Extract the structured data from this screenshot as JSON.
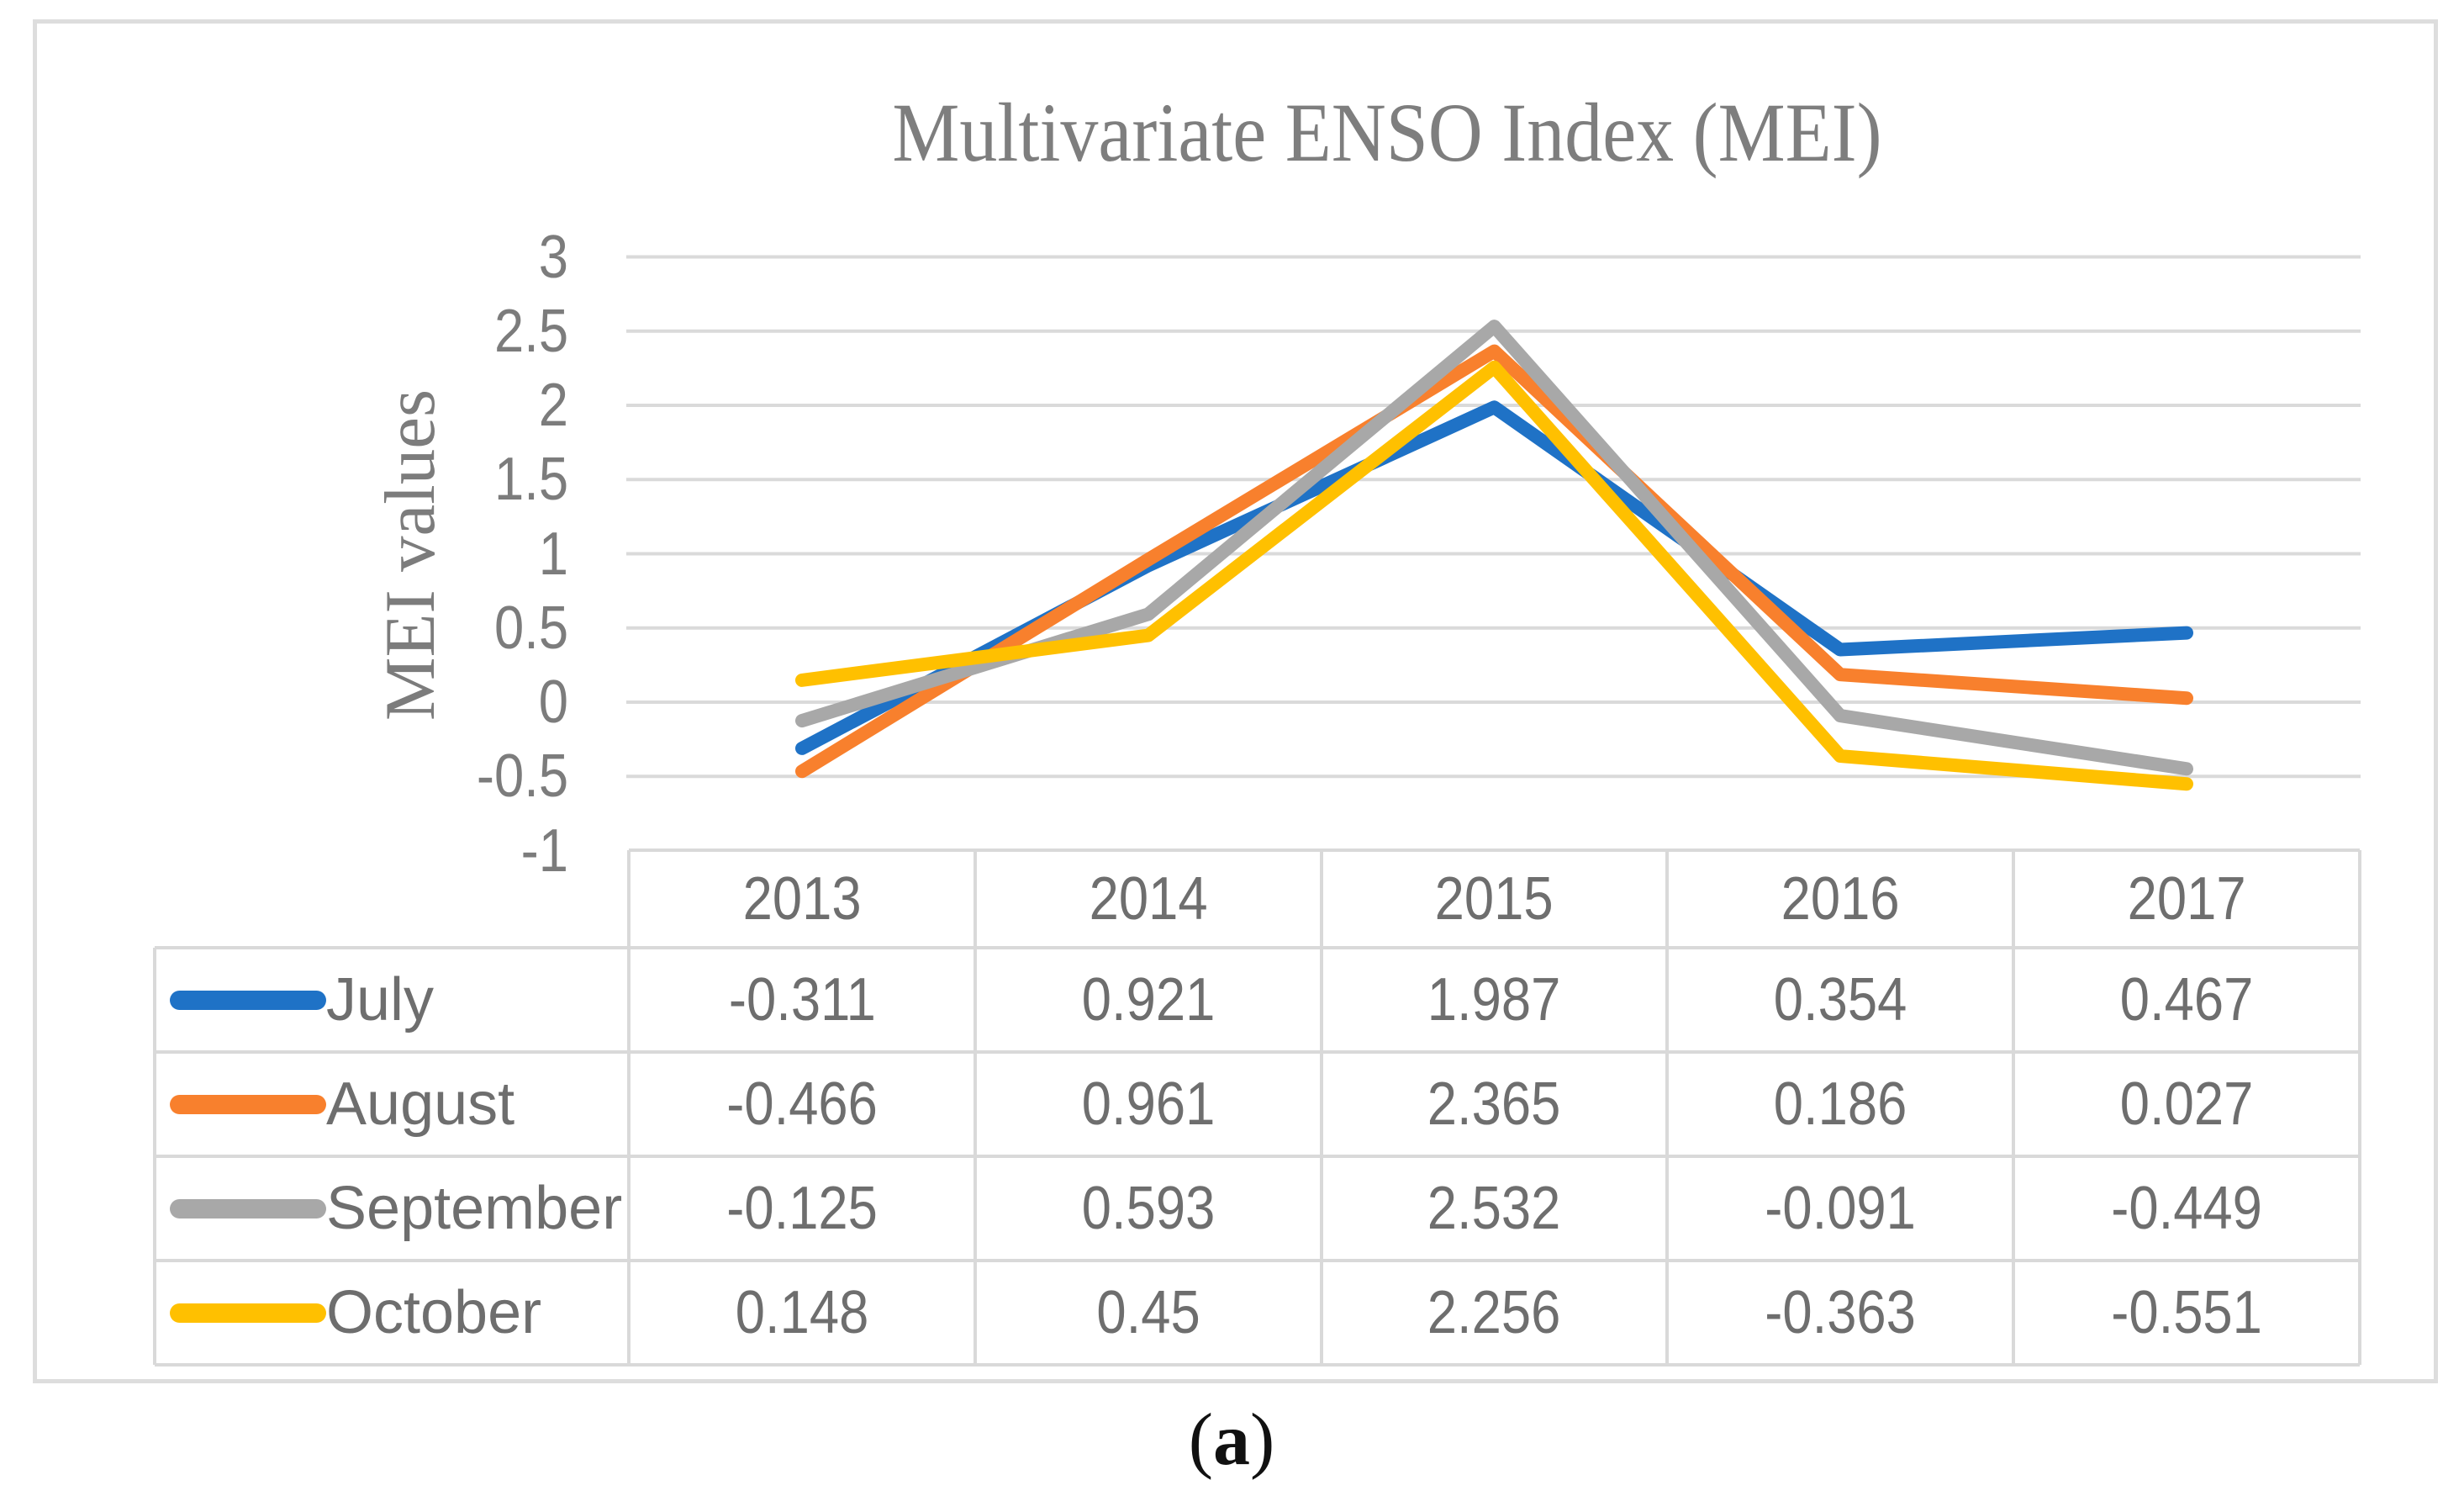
{
  "figure": {
    "caption_open": "(",
    "caption_letter": "a",
    "caption_close": ")"
  },
  "chart_data": {
    "type": "line",
    "title": "Multivariate ENSO Index (MEI)",
    "ylabel": "MEI values",
    "categories": [
      "2013",
      "2014",
      "2015",
      "2016",
      "2017"
    ],
    "series": [
      {
        "name": "July",
        "color": "#1F72C6",
        "values": [
          -0.311,
          0.921,
          1.987,
          0.354,
          0.467
        ]
      },
      {
        "name": "August",
        "color": "#F8802D",
        "values": [
          -0.466,
          0.961,
          2.365,
          0.186,
          0.027
        ]
      },
      {
        "name": "September",
        "color": "#A8A8A8",
        "values": [
          -0.125,
          0.593,
          2.532,
          -0.091,
          -0.449
        ]
      },
      {
        "name": "October",
        "color": "#FFC000",
        "values": [
          0.148,
          0.45,
          2.256,
          -0.363,
          -0.551
        ]
      }
    ],
    "ylim": [
      -1,
      3
    ],
    "ytick_step": 0.5,
    "yticks": [
      "3",
      "2.5",
      "2",
      "1.5",
      "1",
      "0.5",
      "0",
      "-0.5",
      "-1"
    ],
    "grid": true,
    "legend_position": "table-left",
    "colors": {
      "grid": "#DADADA",
      "frame": "#DDDDDD",
      "table_border": "#D9D9D9",
      "axis_text": "#7C7C7C",
      "table_text": "#6E6E6E",
      "title_text": "#7E7E7E",
      "caption_text": "#111111",
      "background": "#FFFFFF"
    }
  }
}
